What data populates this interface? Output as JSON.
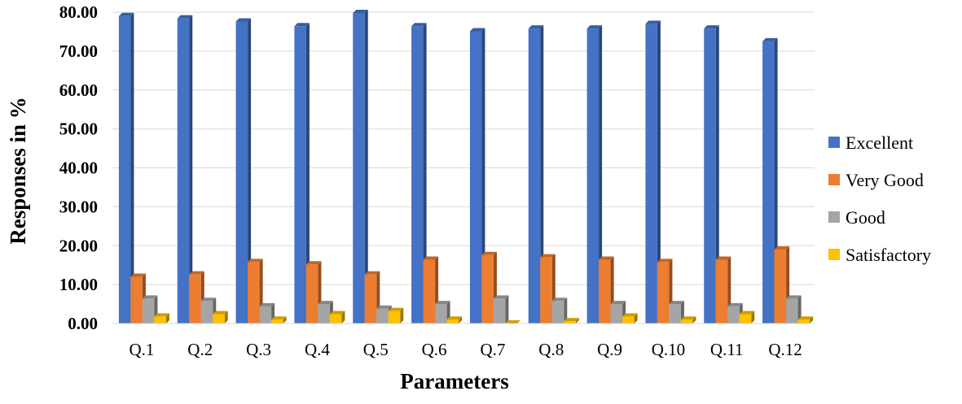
{
  "chart_data": {
    "type": "bar",
    "title": "",
    "xlabel": "Parameters",
    "ylabel": "Responses in %",
    "ylim": [
      0,
      80
    ],
    "yticks": [
      "0.00",
      "10.00",
      "20.00",
      "30.00",
      "40.00",
      "50.00",
      "60.00",
      "70.00",
      "80.00"
    ],
    "categories": [
      "Q.1",
      "Q.2",
      "Q.3",
      "Q.4",
      "Q.5",
      "Q.6",
      "Q.7",
      "Q.8",
      "Q.9",
      "Q.10",
      "Q.11",
      "Q.12"
    ],
    "series": [
      {
        "name": "Excellent",
        "color": "#4472C4",
        "values": [
          79.0,
          78.4,
          77.6,
          76.4,
          79.8,
          76.4,
          75.1,
          75.8,
          75.8,
          77.0,
          75.8,
          72.5
        ]
      },
      {
        "name": "Very Good",
        "color": "#ED7D31",
        "values": [
          12.0,
          12.6,
          15.8,
          15.2,
          12.6,
          16.4,
          17.6,
          17.0,
          16.4,
          15.8,
          16.4,
          19.0
        ]
      },
      {
        "name": "Good",
        "color": "#A5A5A5",
        "values": [
          6.4,
          5.8,
          4.4,
          5.0,
          3.8,
          5.0,
          6.4,
          5.8,
          5.0,
          5.0,
          4.4,
          6.4
        ]
      },
      {
        "name": "Satisfactory",
        "color": "#FFC000",
        "values": [
          1.8,
          2.4,
          1.0,
          2.4,
          3.2,
          1.0,
          0.0,
          0.6,
          1.8,
          1.0,
          2.4,
          1.0
        ]
      }
    ],
    "grid": true,
    "legend_position": "right"
  }
}
